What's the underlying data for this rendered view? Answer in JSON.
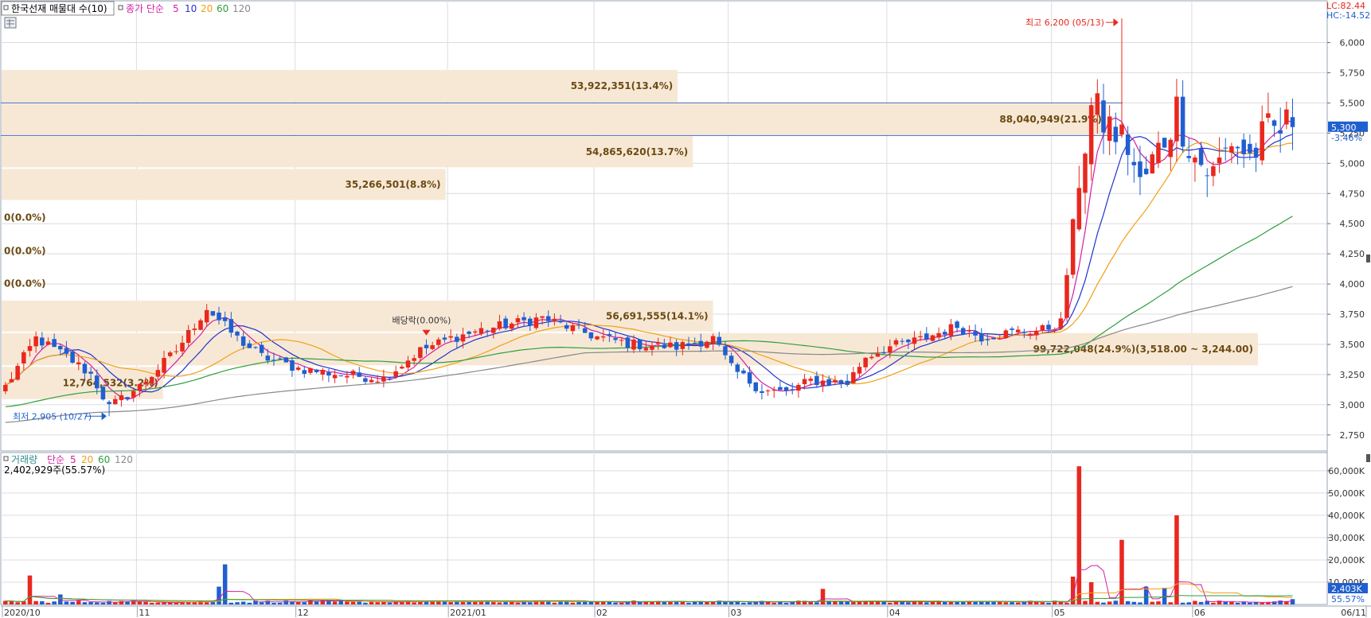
{
  "price_panel": {
    "title": "한국선재 매물대 수(10)",
    "ma_legend": {
      "prefix": "종가 단순",
      "periods": [
        "5",
        "10",
        "20",
        "60",
        "120"
      ]
    },
    "lc_label": "LC:82.44",
    "hc_label": "HC:-14.52",
    "current_price": "5,300",
    "change_pct": "-3.46%",
    "high_label": "최고 6,200 (05/13)",
    "low_label": "최저 2,905 (10/27)",
    "dividend_label": "배당락(0.00%)"
  },
  "volume_panel": {
    "title": "거래량",
    "ma_legend": {
      "prefix": "단순",
      "periods": [
        "5",
        "20",
        "60",
        "120"
      ]
    },
    "summary": "2,402,929주(55.57%)",
    "current_volume": "2,403K",
    "current_ratio": "55.57%"
  },
  "colors": {
    "up": "#e8281e",
    "down": "#1f5fd0",
    "ma5": "#d21fa3",
    "ma10": "#2233cc",
    "ma20": "#f0a015",
    "ma60": "#2e9e3c",
    "ma120": "#888888",
    "volume_profile": "#f7e8d6",
    "profile_text": "#6b4a12",
    "grid": "#dcdcdc"
  },
  "chart_data": [
    {
      "type": "candlestick",
      "title": "한국선재 매물대 수(10)",
      "ylim": [
        2650,
        6300
      ],
      "y_ticks": [
        "2,750",
        "3,000",
        "3,250",
        "3,500",
        "3,750",
        "4,000",
        "4,250",
        "4,500",
        "4,750",
        "5,000",
        "5,250",
        "5,500",
        "5,750",
        "6,000"
      ],
      "y_tick_values": [
        2750,
        3000,
        3250,
        3500,
        3750,
        4000,
        4250,
        4500,
        4750,
        5000,
        5250,
        5500,
        5750,
        6000
      ],
      "x_labels": [
        "2020/10",
        "11",
        "12",
        "2021/01",
        "02",
        "03",
        "04",
        "05",
        "06",
        "06/11"
      ],
      "x_label_index": [
        0,
        22,
        48,
        73,
        97,
        119,
        145,
        172,
        195,
        212
      ],
      "n_days": 212,
      "price_anchors": [
        {
          "day": 0,
          "price": 3150
        },
        {
          "day": 5,
          "price": 3550
        },
        {
          "day": 10,
          "price": 3400
        },
        {
          "day": 14,
          "price": 3250
        },
        {
          "day": 17,
          "price": 2980
        },
        {
          "day": 22,
          "price": 3150
        },
        {
          "day": 28,
          "price": 3450
        },
        {
          "day": 33,
          "price": 3800
        },
        {
          "day": 38,
          "price": 3550
        },
        {
          "day": 42,
          "price": 3400
        },
        {
          "day": 48,
          "price": 3300
        },
        {
          "day": 55,
          "price": 3250
        },
        {
          "day": 62,
          "price": 3220
        },
        {
          "day": 68,
          "price": 3450
        },
        {
          "day": 73,
          "price": 3550
        },
        {
          "day": 78,
          "price": 3620
        },
        {
          "day": 84,
          "price": 3680
        },
        {
          "day": 88,
          "price": 3720
        },
        {
          "day": 92,
          "price": 3650
        },
        {
          "day": 97,
          "price": 3560
        },
        {
          "day": 103,
          "price": 3500
        },
        {
          "day": 110,
          "price": 3480
        },
        {
          "day": 116,
          "price": 3550
        },
        {
          "day": 119,
          "price": 3300
        },
        {
          "day": 124,
          "price": 3120
        },
        {
          "day": 128,
          "price": 3100
        },
        {
          "day": 132,
          "price": 3200
        },
        {
          "day": 138,
          "price": 3180
        },
        {
          "day": 141,
          "price": 3400
        },
        {
          "day": 145,
          "price": 3480
        },
        {
          "day": 150,
          "price": 3540
        },
        {
          "day": 156,
          "price": 3650
        },
        {
          "day": 160,
          "price": 3560
        },
        {
          "day": 165,
          "price": 3600
        },
        {
          "day": 170,
          "price": 3620
        },
        {
          "day": 173,
          "price": 3680
        },
        {
          "day": 176,
          "price": 4900
        },
        {
          "day": 178,
          "price": 5450
        },
        {
          "day": 181,
          "price": 5300
        },
        {
          "day": 184,
          "price": 5150
        },
        {
          "day": 186,
          "price": 4800
        },
        {
          "day": 189,
          "price": 5100
        },
        {
          "day": 192,
          "price": 5450
        },
        {
          "day": 195,
          "price": 5050
        },
        {
          "day": 198,
          "price": 4900
        },
        {
          "day": 201,
          "price": 5200
        },
        {
          "day": 204,
          "price": 5050
        },
        {
          "day": 207,
          "price": 5250
        },
        {
          "day": 210,
          "price": 5300
        }
      ],
      "high": {
        "day": 183,
        "price": 6200,
        "date": "05/13"
      },
      "low": {
        "day": 17,
        "price": 2905,
        "date": "10/27"
      },
      "dividend_day": 69,
      "moving_averages": [
        {
          "name": "5",
          "color": "#d21fa3"
        },
        {
          "name": "10",
          "color": "#2233cc"
        },
        {
          "name": "20",
          "color": "#f0a015"
        },
        {
          "name": "60",
          "color": "#2e9e3c"
        },
        {
          "name": "120",
          "color": "#888888"
        }
      ],
      "volume_profile": [
        {
          "low": 5500,
          "high": 5780,
          "label": "53,922,351(13.4%)"
        },
        {
          "low": 5230,
          "high": 5500,
          "label": "88,040,949(21.9%)"
        },
        {
          "low": 4960,
          "high": 5230,
          "label": "54,865,620(13.7%)"
        },
        {
          "low": 4690,
          "high": 4960,
          "label": "35,266,501(8.8%)"
        },
        {
          "low": 4410,
          "high": 4690,
          "label": "0(0.0%)"
        },
        {
          "low": 4140,
          "high": 4410,
          "label": "0(0.0%)"
        },
        {
          "low": 3870,
          "high": 4140,
          "label": "0(0.0%)"
        },
        {
          "low": 3600,
          "high": 3870,
          "label": "56,691,555(14.1%)"
        },
        {
          "low": 3320,
          "high": 3600,
          "label": "99,722,048(24.9%)(3,518.00 ~ 3,244.00)"
        },
        {
          "low": 3040,
          "high": 3320,
          "label": "12,764,532(3.2%)"
        }
      ],
      "horizontal_line": 5230
    },
    {
      "type": "bar",
      "title": "거래량",
      "ylim": [
        0,
        66000
      ],
      "y_ticks": [
        "10,000K",
        "20,000K",
        "30,000K",
        "40,000K",
        "50,000K",
        "60,000K"
      ],
      "y_tick_values": [
        10000,
        20000,
        30000,
        40000,
        50000,
        60000
      ],
      "unit": "K",
      "spikes": [
        {
          "day": 4,
          "value": 13000
        },
        {
          "day": 9,
          "value": 4500
        },
        {
          "day": 36,
          "value": 18000
        },
        {
          "day": 35,
          "value": 8000
        },
        {
          "day": 175,
          "value": 12500
        },
        {
          "day": 176,
          "value": 62000
        },
        {
          "day": 178,
          "value": 10000
        },
        {
          "day": 183,
          "value": 29000
        },
        {
          "day": 187,
          "value": 8000
        },
        {
          "day": 192,
          "value": 40000
        },
        {
          "day": 190,
          "value": 7500
        },
        {
          "day": 134,
          "value": 7000
        }
      ],
      "base_volume": 1200,
      "last_volume": 2403
    }
  ]
}
